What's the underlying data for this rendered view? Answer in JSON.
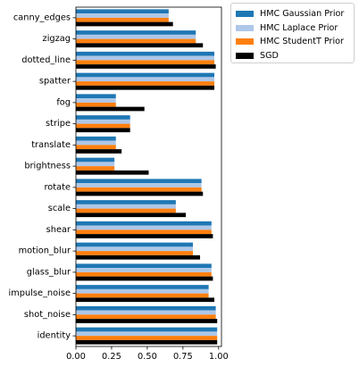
{
  "chart_data": {
    "type": "bar",
    "orientation": "horizontal",
    "categories": [
      "canny_edges",
      "zigzag",
      "dotted_line",
      "spatter",
      "fog",
      "stripe",
      "translate",
      "brightness",
      "rotate",
      "scale",
      "shear",
      "motion_blur",
      "glass_blur",
      "impulse_noise",
      "shot_noise",
      "identity"
    ],
    "series": [
      {
        "name": "HMC Gaussian Prior",
        "color": "#1f77b4",
        "values": [
          0.65,
          0.84,
          0.97,
          0.97,
          0.28,
          0.38,
          0.28,
          0.27,
          0.88,
          0.7,
          0.95,
          0.82,
          0.95,
          0.93,
          0.98,
          0.99
        ]
      },
      {
        "name": "HMC Laplace Prior",
        "color": "#aec7e8",
        "values": [
          0.65,
          0.84,
          0.97,
          0.97,
          0.28,
          0.38,
          0.28,
          0.27,
          0.88,
          0.7,
          0.95,
          0.82,
          0.95,
          0.93,
          0.98,
          0.99
        ]
      },
      {
        "name": "HMC StudentT Prior",
        "color": "#ff7f0e",
        "values": [
          0.65,
          0.84,
          0.97,
          0.97,
          0.28,
          0.38,
          0.28,
          0.27,
          0.88,
          0.7,
          0.95,
          0.82,
          0.95,
          0.93,
          0.98,
          0.99
        ]
      },
      {
        "name": "SGD",
        "color": "#000000",
        "values": [
          0.68,
          0.89,
          0.98,
          0.97,
          0.48,
          0.38,
          0.32,
          0.51,
          0.89,
          0.77,
          0.96,
          0.87,
          0.96,
          0.97,
          0.99,
          0.99
        ]
      }
    ],
    "xlim": [
      0,
      1.02
    ],
    "xticks": [
      "0.00",
      "0.25",
      "0.50",
      "0.75",
      "1.00"
    ],
    "xtick_values": [
      0,
      0.25,
      0.5,
      0.75,
      1.0
    ],
    "title": "",
    "xlabel": "",
    "ylabel": "",
    "grid": false,
    "legend_placement": "outside top-right"
  }
}
